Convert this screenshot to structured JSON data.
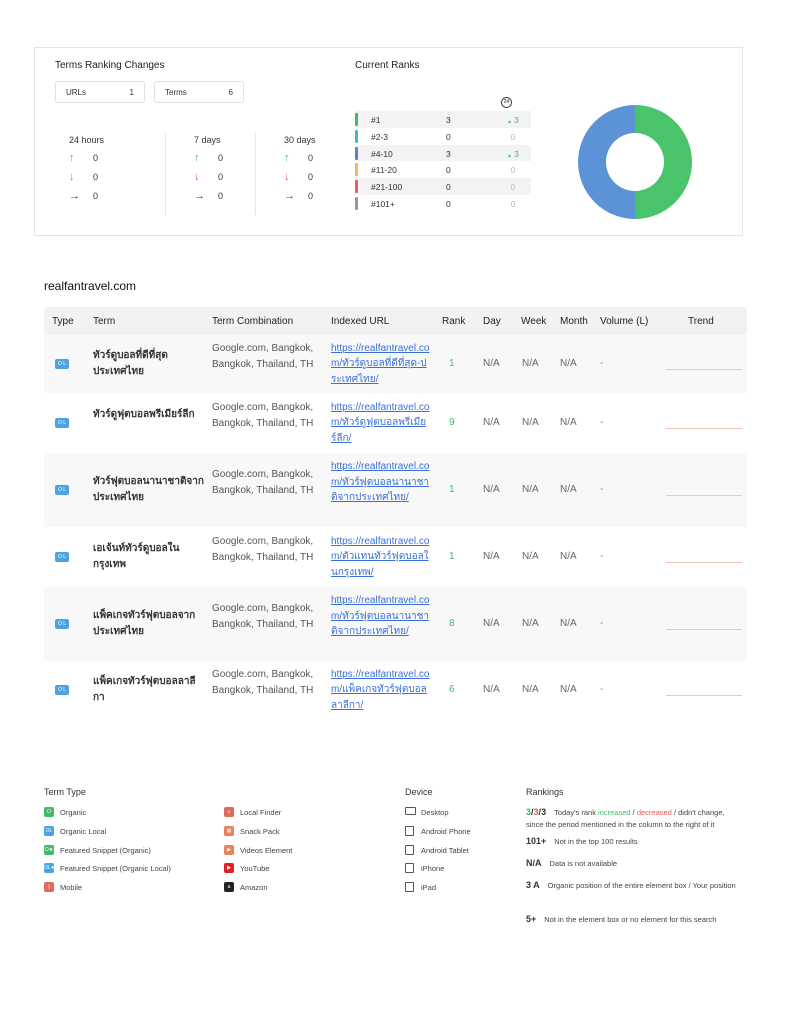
{
  "summary": {
    "ranking_changes_title": "Terms Ranking Changes",
    "urls_label": "URLs",
    "urls_count": "1",
    "terms_label": "Terms",
    "terms_count": "6",
    "periods": [
      {
        "label": "24 hours",
        "up": "0",
        "down": "0",
        "flat": "0"
      },
      {
        "label": "7 days",
        "up": "0",
        "down": "0",
        "flat": "0"
      },
      {
        "label": "30 days",
        "up": "0",
        "down": "0",
        "flat": "0"
      }
    ],
    "current_ranks_title": "Current Ranks",
    "clock_label": "24",
    "ranks": [
      {
        "label": "#1",
        "count": "3",
        "change": "3",
        "up": true,
        "color": "#3dbb6a"
      },
      {
        "label": "#2-3",
        "count": "0",
        "change": "0",
        "up": false,
        "color": "#4bb5c8"
      },
      {
        "label": "#4-10",
        "count": "3",
        "change": "3",
        "up": true,
        "color": "#5b84c8"
      },
      {
        "label": "#11-20",
        "count": "0",
        "change": "0",
        "up": false,
        "color": "#f0b860"
      },
      {
        "label": "#21-100",
        "count": "0",
        "change": "0",
        "up": false,
        "color": "#e85b6a"
      },
      {
        "label": "#101+",
        "count": "0",
        "change": "0",
        "up": false,
        "color": "#999999"
      }
    ]
  },
  "chart_data": {
    "type": "pie",
    "categories": [
      "#1",
      "#4-10"
    ],
    "values": [
      3,
      3
    ],
    "colors": [
      "#49c46a",
      "#5b93d6"
    ],
    "title": ""
  },
  "domain": "realfantravel.com",
  "table": {
    "headers": {
      "type": "Type",
      "term": "Term",
      "combination": "Term Combination",
      "url": "Indexed URL",
      "rank": "Rank",
      "day": "Day",
      "week": "Week",
      "month": "Month",
      "volume": "Volume (L)",
      "trend": "Trend"
    },
    "rows": [
      {
        "type_icon": "O L",
        "term": "ทัวร์ดูบอลที่ดีที่สุดประเทศไทย",
        "combination": "Google.com, Bangkok, Bangkok, Thailand, TH",
        "url": "https://realfantravel.com/ทัวร์ดูบอลที่ดีที่สุด-ประเทศไทย/",
        "rank": "1",
        "day": "N/A",
        "week": "N/A",
        "month": "N/A",
        "volume": "-"
      },
      {
        "type_icon": "O L",
        "term": "ทัวร์ดูฟุตบอลพรีเมียร์ลีก",
        "combination": "Google.com, Bangkok, Bangkok, Thailand, TH",
        "url": "https://realfantravel.com/ทัวร์ดูฟุตบอลพรีเมียร์ลีก/",
        "rank": "9",
        "day": "N/A",
        "week": "N/A",
        "month": "N/A",
        "volume": "-"
      },
      {
        "type_icon": "O L",
        "term": "ทัวร์ฟุตบอลนานาชาติจากประเทศไทย",
        "combination": "Google.com, Bangkok, Bangkok, Thailand, TH",
        "url": "https://realfantravel.com/ทัวร์ฟุตบอลนานาชาติจากประเทศไทย/",
        "rank": "1",
        "day": "N/A",
        "week": "N/A",
        "month": "N/A",
        "volume": "-"
      },
      {
        "type_icon": "O L",
        "term": "เอเจ้นท์ทัวร์ดูบอลในกรุงเทพ",
        "combination": "Google.com, Bangkok, Bangkok, Thailand, TH",
        "url": "https://realfantravel.com/ตัวแทนทัวร์ฟุตบอลในกรุงเทพ/",
        "rank": "1",
        "day": "N/A",
        "week": "N/A",
        "month": "N/A",
        "volume": "-"
      },
      {
        "type_icon": "O L",
        "term": "แพ็คเกจทัวร์ฟุตบอลจากประเทศไทย",
        "combination": "Google.com, Bangkok, Bangkok, Thailand, TH",
        "url": "https://realfantravel.com/ทัวร์ฟุตบอลนานาชาติจากประเทศไทย/",
        "rank": "8",
        "day": "N/A",
        "week": "N/A",
        "month": "N/A",
        "volume": "-"
      },
      {
        "type_icon": "O L",
        "term": "แพ็คเกจทัวร์ฟุตบอลลาลีกา",
        "combination": "Google.com, Bangkok, Bangkok, Thailand, TH",
        "url": "https://realfantravel.com/แพ็คเกจทัวร์ฟุตบอลลาลีกา/",
        "rank": "6",
        "day": "N/A",
        "week": "N/A",
        "month": "N/A",
        "volume": "-"
      }
    ]
  },
  "legend": {
    "term_type_title": "Term Type",
    "term_types": [
      {
        "label": "Organic",
        "icon": "O",
        "color": "#45b86a"
      },
      {
        "label": "Organic Local",
        "icon": "OL",
        "color": "#4ba3e3"
      },
      {
        "label": "Featured Snippet (Organic)",
        "icon": "O★",
        "color": "#45b86a"
      },
      {
        "label": "Featured Snippet (Organic Local)",
        "icon": "OL★",
        "color": "#4ba3e3"
      },
      {
        "label": "Mobile",
        "icon": "▯",
        "color": "#e26a5a"
      }
    ],
    "term_types_2": [
      {
        "label": "Local Finder",
        "icon": "⌕",
        "color": "#e26a5a"
      },
      {
        "label": "Snack Pack",
        "icon": "▦",
        "color": "#e8825a"
      },
      {
        "label": "Videos Element",
        "icon": "▶",
        "color": "#e8825a"
      },
      {
        "label": "YouTube",
        "icon": "▶",
        "color": "#e02020"
      },
      {
        "label": "Amazon",
        "icon": "a",
        "color": "#222222"
      }
    ],
    "device_title": "Device",
    "devices": [
      {
        "label": "Desktop"
      },
      {
        "label": "Android Phone"
      },
      {
        "label": "Android Tablet"
      },
      {
        "label": "iPhone"
      },
      {
        "label": "iPad"
      }
    ],
    "rankings_title": "Rankings",
    "rk1_a": "3",
    "rk1_b": "3",
    "rk1_c": "3",
    "rk1_text_1": "Today's rank ",
    "rk1_increased": "increased",
    "rk1_decreased": "decreased",
    "rk1_text_2": " / didn't change, since the period mentioned in the column to the right of it",
    "rk2_key": "101+",
    "rk2_text": "Not in the top 100 results",
    "rk3_key": "N/A",
    "rk3_text": "Data is not available",
    "rk4_key": "3 A",
    "rk4_text": "Organic position of the entire element box / Your position",
    "rk5_key": "5+",
    "rk5_text": "Not in the element box or no element for this search"
  }
}
